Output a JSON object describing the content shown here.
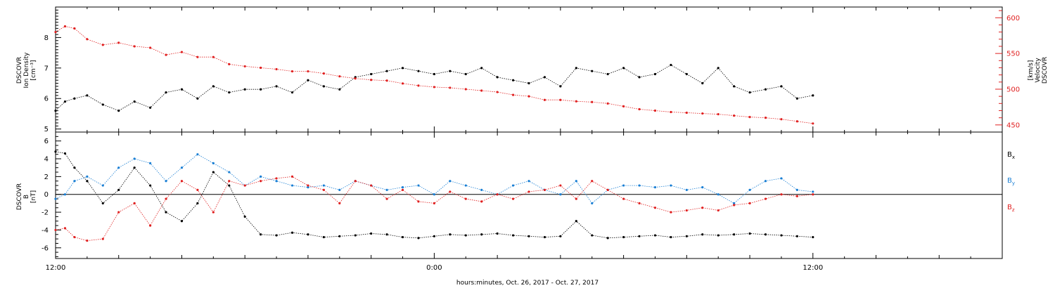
{
  "colors": {
    "axis": "#000000",
    "density": "#000000",
    "velocity": "#e02020",
    "bx": "#000000",
    "by": "#1a7fd4",
    "bz": "#e02020"
  },
  "xlabel": "hours:minutes, Oct. 26, 2017 - Oct. 27, 2017",
  "chart_data": [
    {
      "type": "scatter",
      "panel": "top",
      "left_axis": {
        "title_line1": "DSCOVR",
        "title_line2": "Ion Density",
        "unit": "[cm⁻³]",
        "ticks": [
          "5",
          "6",
          "7",
          "8"
        ],
        "ylim": [
          4.9,
          9.0
        ]
      },
      "right_axis": {
        "title_line1": "DSCOVR",
        "title_line2": "Velocity",
        "unit": "[km/s]",
        "ticks": [
          "450",
          "500",
          "550",
          "600"
        ],
        "ylim": [
          440,
          615
        ]
      },
      "x_ticks": [
        "12:00",
        "0:00",
        "12:00"
      ],
      "xlim_hours": [
        12,
        42
      ],
      "series": [
        {
          "axis": "left",
          "x_hours": [
            12.0,
            12.3,
            12.6,
            13.0,
            13.5,
            14.0,
            14.5,
            15.0,
            15.5,
            16.0,
            16.5,
            17.0,
            17.5,
            18.0,
            18.5,
            19.0,
            19.5,
            20.0,
            20.5,
            21.0,
            21.5,
            22.0,
            22.5,
            23.0,
            23.5,
            24.0,
            24.5,
            25.0,
            25.5,
            26.0,
            26.5,
            27.0,
            27.5,
            28.0,
            28.5,
            29.0,
            29.5,
            30.0,
            30.5,
            31.0,
            31.5,
            32.0,
            32.5,
            33.0,
            33.5,
            34.0,
            34.5,
            35.0,
            35.5,
            36.0
          ],
          "values": [
            5.6,
            5.9,
            6.0,
            6.1,
            5.8,
            5.6,
            5.9,
            5.7,
            6.2,
            6.3,
            6.0,
            6.4,
            6.2,
            6.3,
            6.3,
            6.4,
            6.2,
            6.6,
            6.4,
            6.3,
            6.7,
            6.8,
            6.9,
            7.0,
            6.9,
            6.8,
            6.9,
            6.8,
            7.0,
            6.7,
            6.6,
            6.5,
            6.7,
            6.4,
            7.0,
            6.9,
            6.8,
            7.0,
            6.7,
            6.8,
            7.1,
            6.8,
            6.5,
            7.0,
            6.4,
            6.2,
            6.3,
            6.4,
            6.0,
            6.1
          ]
        },
        {
          "axis": "right",
          "x_hours": [
            12.0,
            12.3,
            12.6,
            13.0,
            13.5,
            14.0,
            14.5,
            15.0,
            15.5,
            16.0,
            16.5,
            17.0,
            17.5,
            18.0,
            18.5,
            19.0,
            19.5,
            20.0,
            20.5,
            21.0,
            21.5,
            22.0,
            22.5,
            23.0,
            23.5,
            24.0,
            24.5,
            25.0,
            25.5,
            26.0,
            26.5,
            27.0,
            27.5,
            28.0,
            28.5,
            29.0,
            29.5,
            30.0,
            30.5,
            31.0,
            31.5,
            32.0,
            32.5,
            33.0,
            33.5,
            34.0,
            34.5,
            35.0,
            35.5,
            36.0
          ],
          "values": [
            580,
            588,
            585,
            570,
            562,
            565,
            560,
            558,
            548,
            552,
            545,
            545,
            535,
            532,
            530,
            528,
            525,
            525,
            522,
            518,
            515,
            513,
            512,
            508,
            505,
            503,
            502,
            500,
            498,
            496,
            492,
            490,
            485,
            485,
            483,
            482,
            480,
            476,
            472,
            470,
            468,
            467,
            466,
            465,
            463,
            461,
            460,
            458,
            455,
            452
          ]
        }
      ]
    },
    {
      "type": "scatter",
      "panel": "bottom",
      "left_axis": {
        "title_line1": "DSCOVR",
        "title_line2": "B",
        "unit": "[nT]",
        "ticks": [
          "-6",
          "-4",
          "-2",
          "0",
          "2",
          "4",
          "6"
        ],
        "ylim": [
          -7.2,
          7.0
        ]
      },
      "legend": [
        {
          "base": "B",
          "sub": "x"
        },
        {
          "base": "B",
          "sub": "y"
        },
        {
          "base": "B",
          "sub": "z"
        }
      ],
      "x_ticks": [
        "12:00",
        "0:00",
        "12:00"
      ],
      "xlim_hours": [
        12,
        42
      ],
      "series": [
        {
          "name": "Bx",
          "x_hours": [
            12.0,
            12.3,
            12.6,
            13.0,
            13.5,
            14.0,
            14.5,
            15.0,
            15.5,
            16.0,
            16.5,
            17.0,
            17.5,
            18.0,
            18.5,
            19.0,
            19.5,
            20.0,
            20.5,
            21.0,
            21.5,
            22.0,
            22.5,
            23.0,
            23.5,
            24.0,
            24.5,
            25.0,
            25.5,
            26.0,
            26.5,
            27.0,
            27.5,
            28.0,
            28.5,
            29.0,
            29.5,
            30.0,
            30.5,
            31.0,
            31.5,
            32.0,
            32.5,
            33.0,
            33.5,
            34.0,
            34.5,
            35.0,
            35.5,
            36.0
          ],
          "values": [
            4.8,
            4.6,
            3.0,
            1.5,
            -1.0,
            0.5,
            3.0,
            1.0,
            -2.0,
            -3.0,
            -1.0,
            2.5,
            1.0,
            -2.5,
            -4.5,
            -4.6,
            -4.3,
            -4.5,
            -4.8,
            -4.7,
            -4.6,
            -4.4,
            -4.5,
            -4.8,
            -4.9,
            -4.7,
            -4.5,
            -4.6,
            -4.5,
            -4.4,
            -4.6,
            -4.7,
            -4.8,
            -4.7,
            -3.0,
            -4.6,
            -4.9,
            -4.8,
            -4.7,
            -4.6,
            -4.8,
            -4.7,
            -4.5,
            -4.6,
            -4.5,
            -4.4,
            -4.5,
            -4.6,
            -4.7,
            -4.8
          ]
        },
        {
          "name": "By",
          "x_hours": [
            12.0,
            12.3,
            12.6,
            13.0,
            13.5,
            14.0,
            14.5,
            15.0,
            15.5,
            16.0,
            16.5,
            17.0,
            17.5,
            18.0,
            18.5,
            19.0,
            19.5,
            20.0,
            20.5,
            21.0,
            21.5,
            22.0,
            22.5,
            23.0,
            23.5,
            24.0,
            24.5,
            25.0,
            25.5,
            26.0,
            26.5,
            27.0,
            27.5,
            28.0,
            28.5,
            29.0,
            29.5,
            30.0,
            30.5,
            31.0,
            31.5,
            32.0,
            32.5,
            33.0,
            33.5,
            34.0,
            34.5,
            35.0,
            35.5,
            36.0
          ],
          "values": [
            -0.5,
            0.0,
            1.5,
            2.0,
            1.0,
            3.0,
            4.0,
            3.5,
            1.5,
            3.0,
            4.5,
            3.5,
            2.5,
            1.0,
            2.0,
            1.5,
            1.0,
            0.8,
            1.0,
            0.5,
            1.5,
            1.0,
            0.5,
            0.8,
            1.0,
            0.0,
            1.5,
            1.0,
            0.5,
            0.0,
            1.0,
            1.5,
            0.5,
            0.0,
            1.5,
            -1.0,
            0.5,
            1.0,
            1.0,
            0.8,
            1.0,
            0.5,
            0.8,
            0.0,
            -1.0,
            0.5,
            1.5,
            1.8,
            0.5,
            0.3
          ]
        },
        {
          "name": "Bz",
          "x_hours": [
            12.0,
            12.3,
            12.6,
            13.0,
            13.5,
            14.0,
            14.5,
            15.0,
            15.5,
            16.0,
            16.5,
            17.0,
            17.5,
            18.0,
            18.5,
            19.0,
            19.5,
            20.0,
            20.5,
            21.0,
            21.5,
            22.0,
            22.5,
            23.0,
            23.5,
            24.0,
            24.5,
            25.0,
            25.5,
            26.0,
            26.5,
            27.0,
            27.5,
            28.0,
            28.5,
            29.0,
            29.5,
            30.0,
            30.5,
            31.0,
            31.5,
            32.0,
            32.5,
            33.0,
            33.5,
            34.0,
            34.5,
            35.0,
            35.5,
            36.0
          ],
          "values": [
            -4.0,
            -3.8,
            -4.8,
            -5.2,
            -5.0,
            -2.0,
            -1.0,
            -3.5,
            -0.5,
            1.5,
            0.5,
            -2.0,
            1.5,
            1.0,
            1.5,
            1.8,
            2.0,
            1.0,
            0.5,
            -1.0,
            1.5,
            1.0,
            -0.5,
            0.5,
            -0.8,
            -1.0,
            0.3,
            -0.5,
            -0.8,
            0.0,
            -0.5,
            0.3,
            0.5,
            1.0,
            -0.5,
            1.5,
            0.5,
            -0.5,
            -1.0,
            -1.5,
            -2.0,
            -1.8,
            -1.5,
            -1.8,
            -1.2,
            -1.0,
            -0.5,
            0.0,
            -0.2,
            0.0
          ]
        }
      ]
    }
  ]
}
